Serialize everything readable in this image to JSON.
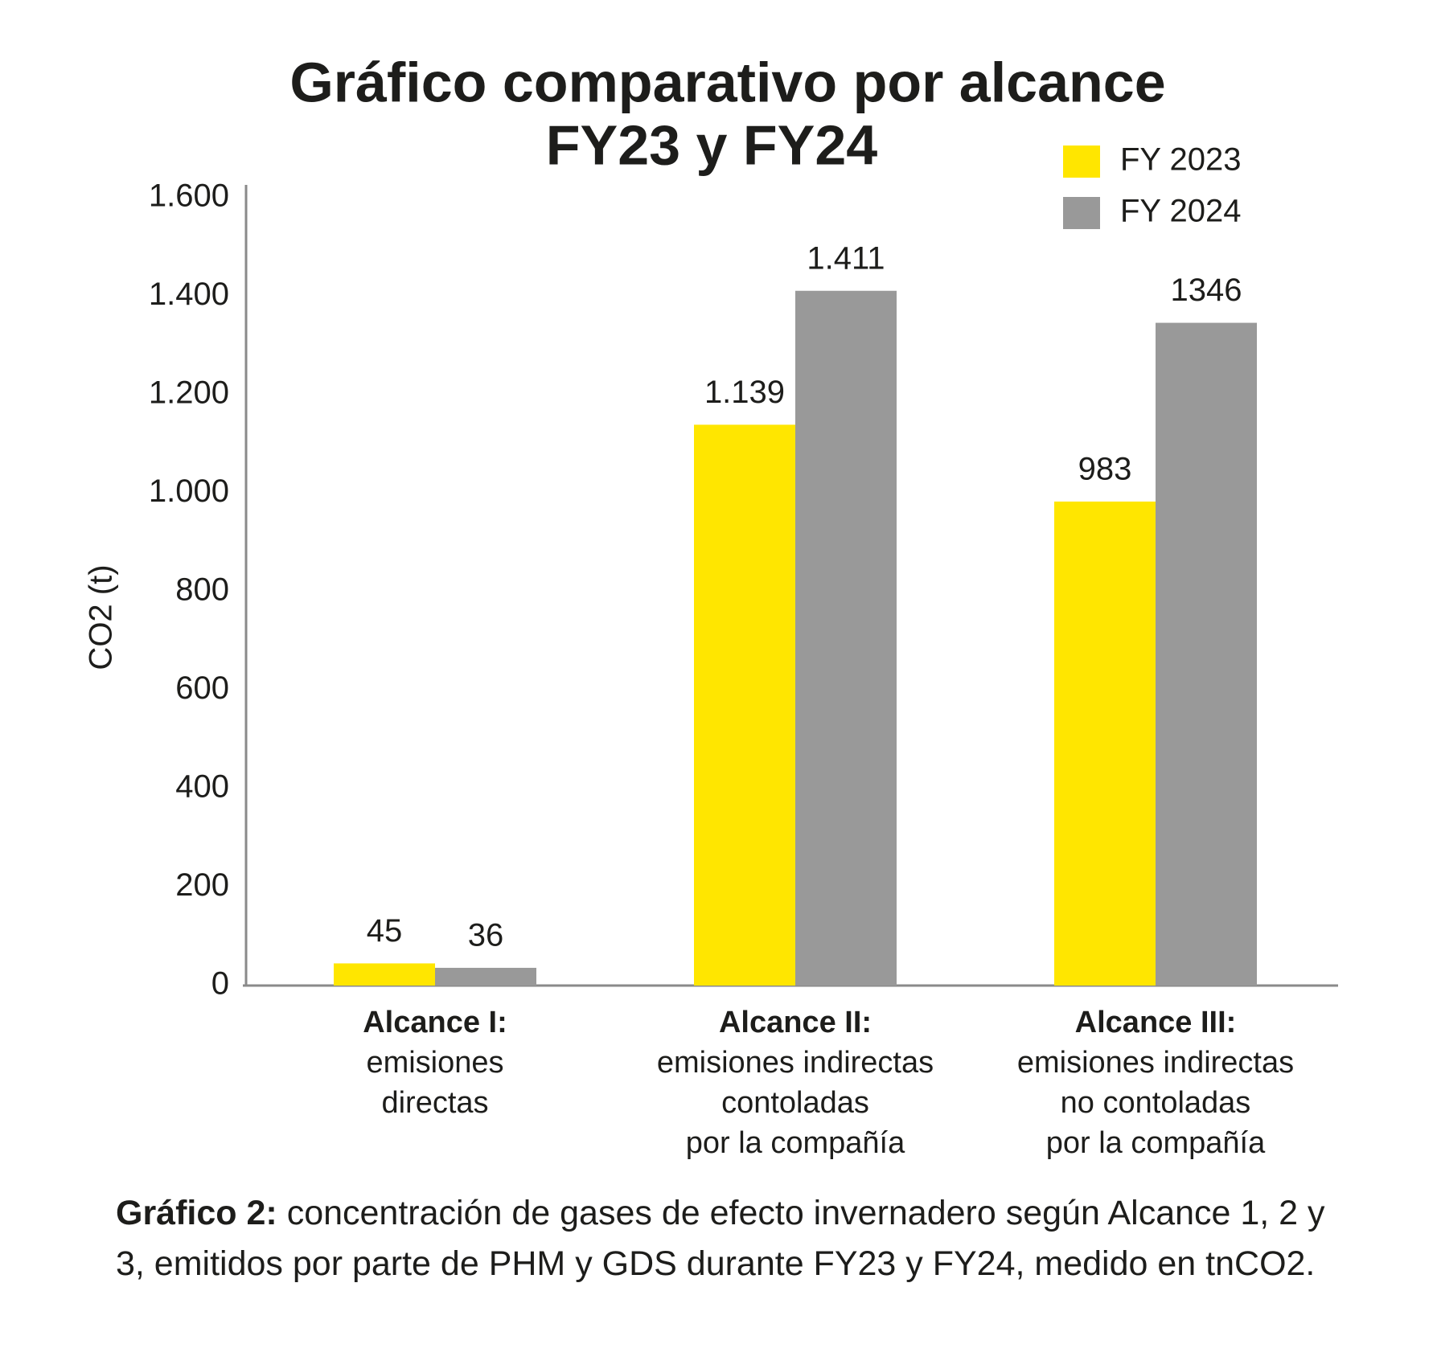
{
  "chart_data": {
    "type": "bar",
    "title": [
      "Gráfico comparativo por alcance",
      "FY23 y FY24"
    ],
    "y_label": "CO2 (t)",
    "categories": [
      [
        "Alcance I:",
        "emisiones",
        "directas"
      ],
      [
        "Alcance II:",
        "emisiones indirectas",
        "contoladas",
        "por la compañía"
      ],
      [
        "Alcance III:",
        "emisiones indirectas",
        "no contoladas",
        "por la compañía"
      ]
    ],
    "series": [
      {
        "name": "FY 2023",
        "color": "#ffe600",
        "values": [
          45,
          1139,
          983
        ],
        "value_labels": [
          "45",
          "1.139",
          "983"
        ]
      },
      {
        "name": "FY 2024",
        "color": "#999999",
        "values": [
          36,
          1411,
          1346
        ],
        "value_labels": [
          "36",
          "1.411",
          "1346"
        ]
      }
    ],
    "ylim": [
      0,
      1600
    ],
    "yticks": [
      0,
      200,
      400,
      600,
      800,
      {
        "value": 1000,
        "label": "1.000"
      },
      {
        "value": 1200,
        "label": "1.200"
      },
      {
        "value": 1400,
        "label": "1.400"
      },
      {
        "value": 1600,
        "label": "1.600"
      }
    ],
    "legend": "top-right",
    "grid": false
  },
  "caption": {
    "label": "Gráfico 2:",
    "text": "concentración de gases de efecto invernadero según Alcance 1, 2 y 3, emitidos por parte de PHM y GDS durante FY23 y FY24, medido en tnCO2."
  }
}
